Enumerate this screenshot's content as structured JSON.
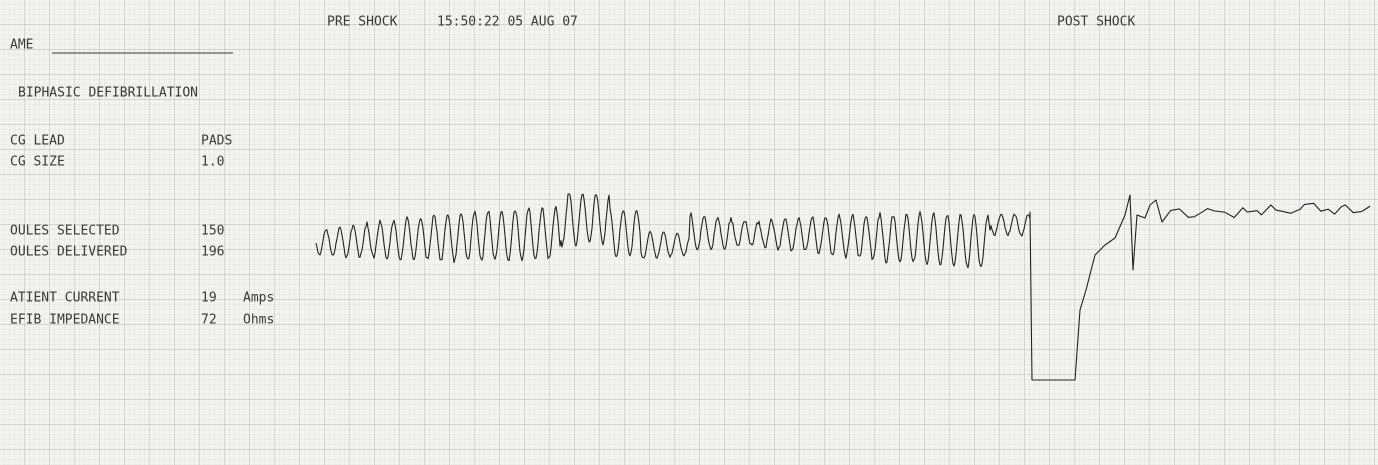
{
  "header": {
    "name_label": "AME",
    "mode": "BIPHASIC DEFIBRILLATION",
    "pre_shock": "PRE SHOCK",
    "timestamp": "15:50:22 05 AUG 07",
    "post_shock": "POST SHOCK"
  },
  "settings": {
    "rows": [
      {
        "label": "CG LEAD",
        "value": "PADS"
      },
      {
        "label": "CG SIZE",
        "value": "1.0"
      },
      {
        "label": "OULES SELECTED",
        "value": 150
      },
      {
        "label": "OULES DELIVERED",
        "value": 196
      },
      {
        "label": "ATIENT CURRENT",
        "value": 19,
        "unit": "Amps"
      },
      {
        "label": "EFIB IMPEDANCE",
        "value": 72,
        "unit": "Ohms"
      }
    ]
  }
}
